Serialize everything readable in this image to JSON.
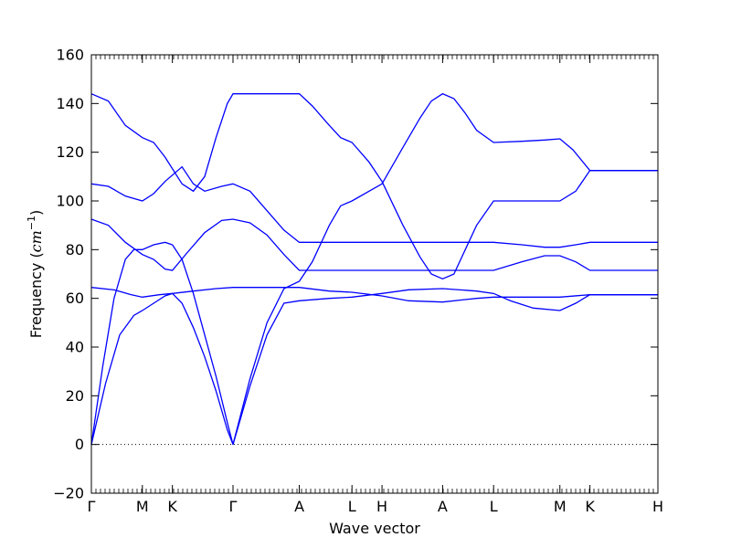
{
  "chart_data": {
    "type": "line",
    "xlabel": "Wave vector",
    "ylabel": "Frequency (cm⁻¹)",
    "ylabel_prefix": "Frequency (",
    "ylabel_unit": "cm",
    "ylabel_exp": "−1",
    "ylabel_suffix": ")",
    "ylim": [
      -20,
      160
    ],
    "yticks": [
      -20,
      0,
      20,
      40,
      60,
      80,
      100,
      120,
      140,
      160
    ],
    "zero_line": true,
    "grid": false,
    "x_path_ticks": [
      {
        "label": "Γ",
        "x": 0.0
      },
      {
        "label": "M",
        "x": 0.9
      },
      {
        "label": "K",
        "x": 1.43
      },
      {
        "label": "Γ",
        "x": 2.5
      },
      {
        "label": "A",
        "x": 3.67
      },
      {
        "label": "L",
        "x": 4.6
      },
      {
        "label": "H",
        "x": 5.13
      },
      {
        "label": "A",
        "x": 6.2
      },
      {
        "label": "L",
        "x": 7.1
      },
      {
        "label": "M",
        "x": 8.27
      },
      {
        "label": "K",
        "x": 8.8
      },
      {
        "label": "H",
        "x": 10.0
      }
    ],
    "xlim": [
      0,
      10.0
    ],
    "series_color": "#0000ff",
    "branches": [
      [
        [
          0,
          0
        ],
        [
          0.25,
          25
        ],
        [
          0.5,
          45
        ],
        [
          0.75,
          53
        ],
        [
          0.9,
          55
        ],
        [
          1.1,
          58
        ],
        [
          1.3,
          61
        ],
        [
          1.43,
          62
        ]
      ],
      [
        [
          1.43,
          62
        ],
        [
          1.6,
          58
        ],
        [
          1.8,
          48
        ],
        [
          2.0,
          36
        ],
        [
          2.2,
          22
        ],
        [
          2.4,
          6
        ],
        [
          2.5,
          0
        ]
      ],
      [
        [
          2.5,
          0
        ],
        [
          2.8,
          24
        ],
        [
          3.1,
          45
        ],
        [
          3.4,
          58
        ],
        [
          3.67,
          59
        ],
        [
          4.2,
          60
        ],
        [
          4.6,
          60.5
        ],
        [
          5.13,
          62
        ],
        [
          5.6,
          63.5
        ],
        [
          6.2,
          64
        ],
        [
          6.8,
          63
        ],
        [
          7.1,
          62
        ],
        [
          7.4,
          59
        ],
        [
          7.8,
          56
        ],
        [
          8.27,
          55
        ],
        [
          8.55,
          58
        ],
        [
          8.8,
          61.5
        ],
        [
          10.0,
          61.5
        ]
      ],
      [
        [
          0,
          0
        ],
        [
          0.2,
          32
        ],
        [
          0.4,
          60
        ],
        [
          0.6,
          76
        ],
        [
          0.75,
          80
        ],
        [
          0.9,
          80
        ],
        [
          1.1,
          82
        ],
        [
          1.3,
          83
        ],
        [
          1.43,
          82
        ]
      ],
      [
        [
          1.43,
          82
        ],
        [
          1.6,
          76
        ],
        [
          1.8,
          62
        ],
        [
          2.0,
          45
        ],
        [
          2.2,
          28
        ],
        [
          2.4,
          9
        ],
        [
          2.5,
          0
        ]
      ],
      [
        [
          2.5,
          0
        ],
        [
          2.8,
          27
        ],
        [
          3.1,
          50
        ],
        [
          3.4,
          64
        ],
        [
          3.67,
          67
        ],
        [
          3.9,
          75
        ],
        [
          4.2,
          90
        ],
        [
          4.4,
          98
        ],
        [
          4.6,
          100
        ],
        [
          5.13,
          107
        ],
        [
          5.5,
          122
        ],
        [
          5.8,
          134
        ],
        [
          6.0,
          141
        ],
        [
          6.2,
          144
        ],
        [
          6.4,
          142
        ],
        [
          6.6,
          136
        ],
        [
          6.8,
          129
        ],
        [
          7.1,
          124
        ],
        [
          7.6,
          124.5
        ],
        [
          8.0,
          125
        ],
        [
          8.27,
          125.5
        ],
        [
          8.5,
          121
        ],
        [
          8.8,
          112.5
        ],
        [
          10.0,
          112.5
        ]
      ],
      [
        [
          0,
          64.5
        ],
        [
          0.4,
          63.5
        ],
        [
          0.7,
          61.5
        ],
        [
          0.9,
          60.5
        ],
        [
          1.2,
          61.5
        ],
        [
          1.43,
          62
        ],
        [
          1.8,
          63
        ],
        [
          2.2,
          64
        ],
        [
          2.5,
          64.5
        ],
        [
          3.1,
          64.5
        ],
        [
          3.67,
          64.5
        ],
        [
          4.2,
          63
        ],
        [
          4.6,
          62.5
        ],
        [
          5.13,
          61
        ],
        [
          5.6,
          59
        ],
        [
          6.2,
          58.5
        ],
        [
          6.8,
          60
        ],
        [
          7.1,
          60.5
        ],
        [
          7.4,
          60.5
        ],
        [
          8.27,
          60.5
        ],
        [
          8.8,
          61.5
        ],
        [
          10.0,
          61.5
        ]
      ],
      [
        [
          0,
          92.5
        ],
        [
          0.3,
          90
        ],
        [
          0.6,
          83
        ],
        [
          0.9,
          78
        ],
        [
          1.1,
          76
        ],
        [
          1.3,
          72
        ],
        [
          1.43,
          71.5
        ],
        [
          1.7,
          79
        ],
        [
          2.0,
          87
        ],
        [
          2.3,
          92
        ],
        [
          2.5,
          92.5
        ],
        [
          2.8,
          91
        ],
        [
          3.1,
          86
        ],
        [
          3.4,
          78
        ],
        [
          3.67,
          71.5
        ],
        [
          4.2,
          71.5
        ],
        [
          4.6,
          71.5
        ],
        [
          5.13,
          71.5
        ],
        [
          6.2,
          71.5
        ],
        [
          7.1,
          71.5
        ],
        [
          7.6,
          75
        ],
        [
          8.0,
          77.5
        ],
        [
          8.27,
          77.5
        ],
        [
          8.55,
          75
        ],
        [
          8.8,
          71.5
        ],
        [
          10.0,
          71.5
        ]
      ],
      [
        [
          0,
          107
        ],
        [
          0.3,
          106
        ],
        [
          0.6,
          102
        ],
        [
          0.9,
          100
        ],
        [
          1.1,
          103
        ],
        [
          1.3,
          108
        ],
        [
          1.6,
          114
        ],
        [
          1.8,
          107
        ],
        [
          2.0,
          104
        ],
        [
          2.3,
          106
        ],
        [
          2.5,
          107
        ],
        [
          2.8,
          104
        ],
        [
          3.1,
          96
        ],
        [
          3.4,
          88
        ],
        [
          3.67,
          83
        ],
        [
          4.2,
          83
        ],
        [
          4.6,
          83
        ],
        [
          5.13,
          83
        ],
        [
          6.2,
          83
        ],
        [
          7.1,
          83
        ],
        [
          7.6,
          82
        ],
        [
          8.0,
          81
        ],
        [
          8.27,
          81
        ],
        [
          8.55,
          82
        ],
        [
          8.8,
          83
        ],
        [
          10.0,
          83
        ]
      ],
      [
        [
          0,
          144
        ],
        [
          0.3,
          141
        ],
        [
          0.6,
          131
        ],
        [
          0.9,
          126
        ],
        [
          1.1,
          124
        ],
        [
          1.3,
          118
        ],
        [
          1.6,
          107
        ],
        [
          1.8,
          104
        ],
        [
          2.0,
          110
        ],
        [
          2.2,
          126
        ],
        [
          2.4,
          140
        ],
        [
          2.5,
          144
        ],
        [
          3.1,
          144
        ],
        [
          3.67,
          144
        ],
        [
          3.9,
          139
        ],
        [
          4.2,
          131
        ],
        [
          4.4,
          126
        ],
        [
          4.6,
          124
        ],
        [
          4.9,
          116
        ],
        [
          5.13,
          108
        ],
        [
          5.5,
          90
        ],
        [
          5.8,
          77
        ],
        [
          6.0,
          70
        ],
        [
          6.2,
          68
        ],
        [
          6.4,
          70
        ],
        [
          6.6,
          80
        ],
        [
          6.8,
          90
        ],
        [
          7.1,
          100
        ],
        [
          7.6,
          100
        ],
        [
          8.27,
          100
        ],
        [
          8.55,
          104
        ],
        [
          8.8,
          112.5
        ],
        [
          10.0,
          112.5
        ]
      ]
    ]
  }
}
